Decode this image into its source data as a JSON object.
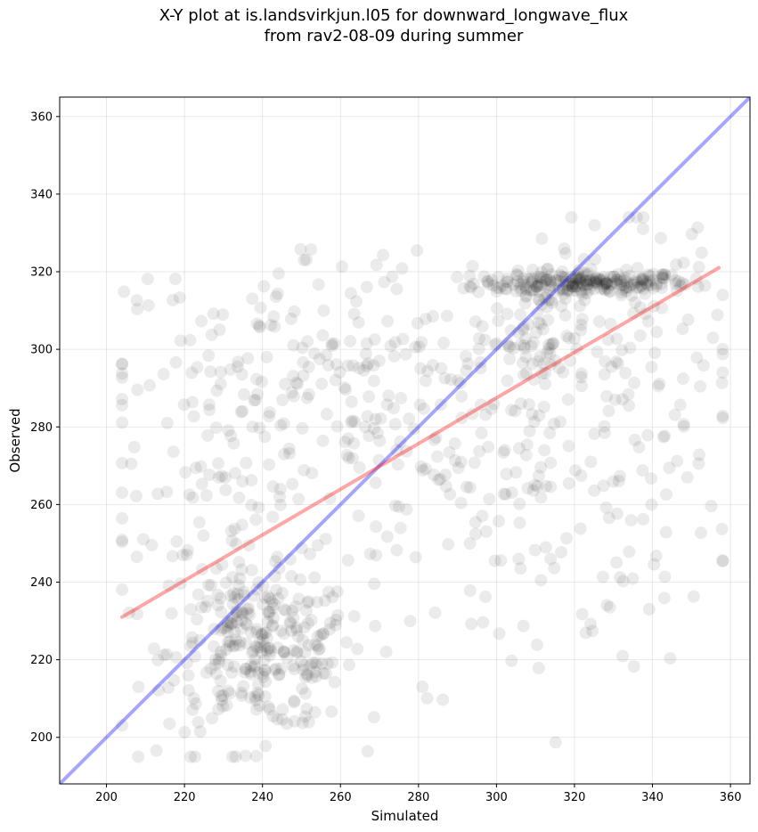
{
  "chart_data": {
    "type": "scatter",
    "title_line1": "X-Y plot at is.landsvirkjun.l05 for downward_longwave_flux",
    "title_line2": "from rav2-08-09 during summer",
    "xlabel": "Simulated",
    "ylabel": "Observed",
    "xlim": [
      188,
      365
    ],
    "ylim": [
      188,
      365
    ],
    "xticks": [
      200,
      220,
      240,
      260,
      280,
      300,
      320,
      340,
      360
    ],
    "yticks": [
      200,
      220,
      240,
      260,
      280,
      300,
      320,
      340,
      360
    ],
    "grid": true,
    "point_color": "#000000",
    "point_opacity": 0.08,
    "one_to_one_line": {
      "x": [
        188,
        365
      ],
      "y": [
        188,
        365
      ],
      "color": "#0000ff"
    },
    "fit_line": {
      "x": [
        204,
        357
      ],
      "y": [
        231,
        321
      ],
      "color": "#ff0000"
    },
    "clusters": [
      {
        "x": 322,
        "y": 317,
        "sx": 14,
        "sy": 1.5,
        "n": 220
      },
      {
        "x": 312,
        "y": 305,
        "sx": 6,
        "sy": 9,
        "n": 70
      },
      {
        "x": 240,
        "y": 222,
        "sx": 12,
        "sy": 10,
        "n": 260
      },
      {
        "x": 255,
        "y": 292,
        "sx": 28,
        "sy": 18,
        "n": 160
      },
      {
        "x": 300,
        "y": 272,
        "sx": 30,
        "sy": 28,
        "n": 260
      },
      {
        "x": 230,
        "y": 252,
        "sx": 16,
        "sy": 28,
        "n": 120
      },
      {
        "x": 340,
        "y": 300,
        "sx": 10,
        "sy": 20,
        "n": 60
      }
    ]
  }
}
